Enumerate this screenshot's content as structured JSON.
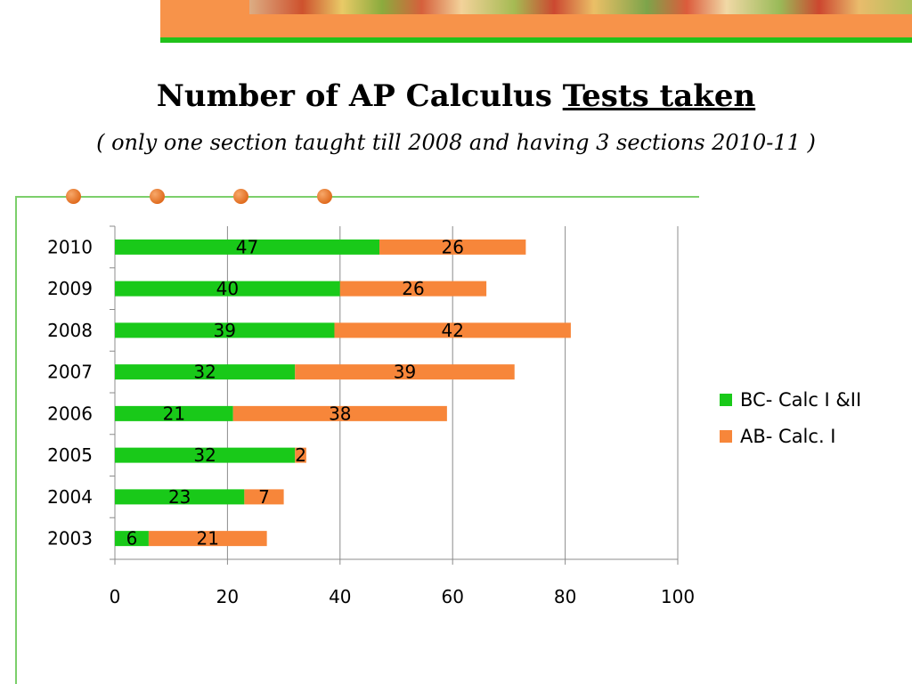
{
  "title_main": "Number of AP Calculus ",
  "title_underlined": "Tests taken",
  "subtitle": "( only one section taught till 2008 and having 3 sections 2010-11 )",
  "colors": {
    "bc": "#19c919",
    "ab": "#f7863a",
    "frame": "#7ccf6b",
    "dot": "#e06c1f",
    "banner_orange": "#f7934a",
    "banner_green": "#21c21b"
  },
  "chart_data": {
    "type": "bar",
    "orientation": "horizontal",
    "stacked": true,
    "categories": [
      "2010",
      "2009",
      "2008",
      "2007",
      "2006",
      "2005",
      "2004",
      "2003"
    ],
    "series": [
      {
        "name": "BC- Calc I &II",
        "values": [
          47,
          40,
          39,
          32,
          21,
          32,
          23,
          6
        ]
      },
      {
        "name": "AB- Calc. I",
        "values": [
          26,
          26,
          42,
          39,
          38,
          2,
          7,
          21
        ]
      }
    ],
    "xlim": [
      0,
      100
    ],
    "xticks": [
      0,
      20,
      40,
      60,
      80,
      100
    ],
    "grid": true,
    "data_labels": true,
    "legend": "right"
  }
}
